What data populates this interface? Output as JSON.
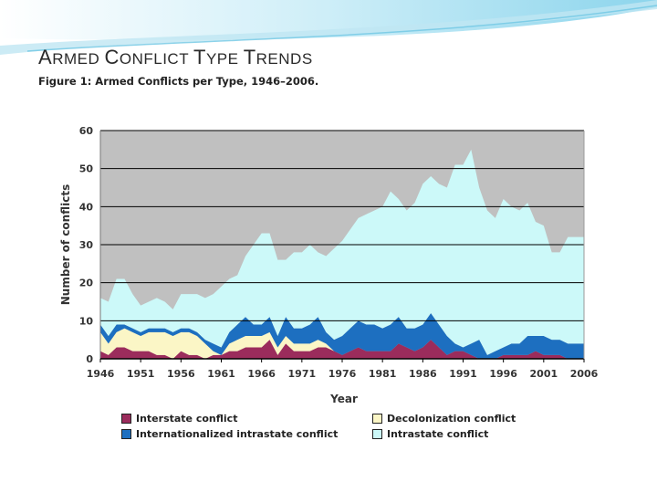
{
  "slide": {
    "title_parts": [
      "A",
      "RMED ",
      "C",
      "ONFLICT ",
      "T",
      "YPE ",
      "T",
      "RENDS"
    ],
    "caption": "Figure 1: Armed Conflicts per Type, 1946–2006."
  },
  "colors": {
    "interstate": "#9b2c5c",
    "decolonization": "#fbf6c6",
    "internationalized": "#1d6fc0",
    "intrastate": "#ccf9f9",
    "banner_light": "#dff3fa",
    "banner_mid": "#8fd3ea"
  },
  "chart_data": {
    "type": "area",
    "stacked": true,
    "x": [
      1946,
      1947,
      1948,
      1949,
      1950,
      1951,
      1952,
      1953,
      1954,
      1955,
      1956,
      1957,
      1958,
      1959,
      1960,
      1961,
      1962,
      1963,
      1964,
      1965,
      1966,
      1967,
      1968,
      1969,
      1970,
      1971,
      1972,
      1973,
      1974,
      1975,
      1976,
      1977,
      1978,
      1979,
      1980,
      1981,
      1982,
      1983,
      1984,
      1985,
      1986,
      1987,
      1988,
      1989,
      1990,
      1991,
      1992,
      1993,
      1994,
      1995,
      1996,
      1997,
      1998,
      1999,
      2000,
      2001,
      2002,
      2003,
      2004,
      2005,
      2006
    ],
    "series": [
      {
        "name": "Interstate conflict",
        "values": [
          2,
          1,
          3,
          3,
          2,
          2,
          2,
          1,
          1,
          0,
          2,
          1,
          1,
          0,
          1,
          1,
          2,
          2,
          3,
          3,
          3,
          5,
          1,
          4,
          2,
          2,
          2,
          3,
          3,
          2,
          1,
          2,
          3,
          2,
          2,
          2,
          2,
          4,
          3,
          2,
          3,
          5,
          3,
          1,
          2,
          2,
          1,
          0,
          0,
          0,
          1,
          1,
          1,
          1,
          2,
          1,
          1,
          1,
          0,
          0,
          0
        ]
      },
      {
        "name": "Decolonization conflict",
        "values": [
          5,
          3,
          4,
          5,
          5,
          4,
          5,
          6,
          6,
          6,
          5,
          6,
          5,
          4,
          1,
          0,
          2,
          3,
          3,
          3,
          3,
          2,
          2,
          2,
          2,
          2,
          2,
          2,
          1,
          0,
          0,
          0,
          0,
          0,
          0,
          0,
          0,
          0,
          0,
          0,
          0,
          0,
          0,
          0,
          0,
          0,
          0,
          0,
          0,
          0,
          0,
          0,
          0,
          0,
          0,
          0,
          0,
          0,
          0,
          0,
          0
        ]
      },
      {
        "name": "Internationalized intrastate conflict",
        "values": [
          2,
          2,
          2,
          1,
          1,
          1,
          1,
          1,
          1,
          1,
          1,
          1,
          1,
          1,
          2,
          2,
          3,
          4,
          5,
          3,
          3,
          4,
          3,
          5,
          4,
          4,
          5,
          6,
          3,
          3,
          5,
          6,
          7,
          7,
          7,
          6,
          7,
          7,
          5,
          6,
          6,
          7,
          6,
          5,
          2,
          1,
          3,
          5,
          1,
          2,
          2,
          3,
          3,
          5,
          4,
          5,
          4,
          4,
          4,
          4,
          4
        ]
      },
      {
        "name": "Intrastate conflict",
        "values": [
          7,
          9,
          12,
          12,
          9,
          7,
          7,
          8,
          7,
          6,
          9,
          9,
          10,
          11,
          13,
          16,
          14,
          13,
          16,
          21,
          24,
          22,
          20,
          15,
          20,
          20,
          21,
          17,
          20,
          24,
          25,
          26,
          27,
          29,
          30,
          32,
          35,
          31,
          31,
          33,
          37,
          36,
          37,
          39,
          47,
          48,
          51,
          40,
          38,
          35,
          39,
          36,
          35,
          35,
          30,
          29,
          23,
          23,
          28,
          28,
          28
        ]
      }
    ],
    "xticks": [
      "1946",
      "1951",
      "1956",
      "1961",
      "1966",
      "1971",
      "1976",
      "1981",
      "1986",
      "1991",
      "1996",
      "2001",
      "2006"
    ],
    "yticks": [
      "0",
      "10",
      "20",
      "30",
      "40",
      "50",
      "60"
    ],
    "ylim": [
      0,
      60
    ],
    "xlim": [
      1946,
      2006
    ],
    "xlabel": "Year",
    "ylabel": "Number of conflicts",
    "legend": [
      {
        "label": "Interstate conflict",
        "key": "interstate"
      },
      {
        "label": "Decolonization conflict",
        "key": "decolonization"
      },
      {
        "label": "Internationalized intrastate conflict",
        "key": "internationalized"
      },
      {
        "label": "Intrastate conflict",
        "key": "intrastate"
      }
    ]
  }
}
